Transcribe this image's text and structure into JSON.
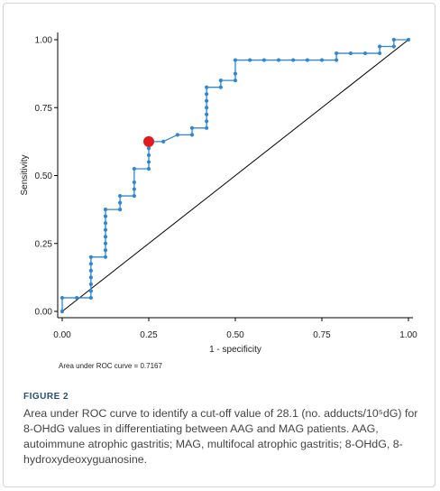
{
  "chart_data": {
    "type": "line",
    "xlabel": "1 - specificity",
    "ylabel": "Sensitivity",
    "xlim": [
      0,
      1
    ],
    "ylim": [
      0,
      1
    ],
    "x_ticks": [
      "0.00",
      "0.25",
      "0.50",
      "0.75",
      "1.00"
    ],
    "y_ticks": [
      "0.00",
      "0.25",
      "0.50",
      "0.75",
      "1.00"
    ],
    "grid": false,
    "line_color": "#2f86d6",
    "reference_line_color": "#000000",
    "cutoff_marker_color": "#e31a1c",
    "cutoff_point": [
      0.25,
      0.625
    ],
    "series": [
      {
        "points": [
          [
            0.0,
            0.0
          ],
          [
            0.0,
            0.05
          ],
          [
            0.042,
            0.05
          ],
          [
            0.083,
            0.05
          ],
          [
            0.083,
            0.075
          ],
          [
            0.083,
            0.1
          ],
          [
            0.083,
            0.125
          ],
          [
            0.083,
            0.15
          ],
          [
            0.083,
            0.175
          ],
          [
            0.083,
            0.2
          ],
          [
            0.125,
            0.2
          ],
          [
            0.125,
            0.225
          ],
          [
            0.125,
            0.25
          ],
          [
            0.125,
            0.275
          ],
          [
            0.125,
            0.3
          ],
          [
            0.125,
            0.325
          ],
          [
            0.125,
            0.35
          ],
          [
            0.125,
            0.375
          ],
          [
            0.167,
            0.375
          ],
          [
            0.167,
            0.4
          ],
          [
            0.167,
            0.425
          ],
          [
            0.208,
            0.425
          ],
          [
            0.208,
            0.45
          ],
          [
            0.208,
            0.475
          ],
          [
            0.208,
            0.525
          ],
          [
            0.25,
            0.525
          ],
          [
            0.25,
            0.55
          ],
          [
            0.25,
            0.575
          ],
          [
            0.25,
            0.6
          ],
          [
            0.25,
            0.625
          ],
          [
            0.292,
            0.625
          ],
          [
            0.333,
            0.65
          ],
          [
            0.375,
            0.65
          ],
          [
            0.375,
            0.675
          ],
          [
            0.417,
            0.675
          ],
          [
            0.417,
            0.7
          ],
          [
            0.417,
            0.725
          ],
          [
            0.417,
            0.75
          ],
          [
            0.417,
            0.775
          ],
          [
            0.417,
            0.8
          ],
          [
            0.417,
            0.825
          ],
          [
            0.458,
            0.825
          ],
          [
            0.458,
            0.85
          ],
          [
            0.5,
            0.85
          ],
          [
            0.5,
            0.875
          ],
          [
            0.5,
            0.925
          ],
          [
            0.542,
            0.925
          ],
          [
            0.583,
            0.925
          ],
          [
            0.625,
            0.925
          ],
          [
            0.667,
            0.925
          ],
          [
            0.708,
            0.925
          ],
          [
            0.75,
            0.925
          ],
          [
            0.792,
            0.925
          ],
          [
            0.792,
            0.95
          ],
          [
            0.833,
            0.95
          ],
          [
            0.875,
            0.95
          ],
          [
            0.917,
            0.95
          ],
          [
            0.917,
            0.975
          ],
          [
            0.958,
            0.975
          ],
          [
            0.958,
            1.0
          ],
          [
            1.0,
            1.0
          ]
        ]
      }
    ],
    "reference_line": [
      [
        0,
        0
      ],
      [
        1,
        1
      ]
    ],
    "annotation": "Area under ROC curve = 0.7167"
  },
  "figure": {
    "label": "FIGURE 2",
    "caption": "Area under ROC curve to identify a cut-off value of 28.1 (no. adducts/10⁵dG) for 8-OHdG values in differentiating between AAG and MAG patients. AAG, autoimmune atrophic gastritis; MAG, multifocal atrophic gastritis; 8-OHdG, 8-hydroxydeoxyguanosine."
  }
}
